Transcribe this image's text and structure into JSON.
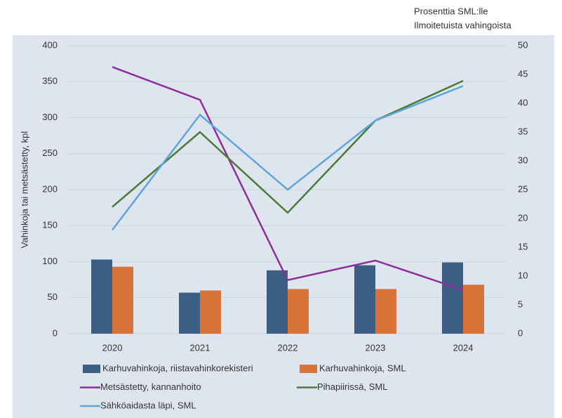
{
  "chart_data": {
    "type": "bar_line",
    "ylabel": "Vahinkoja tai metsästetty, kpl",
    "y2label": [
      "Prosenttia SML:lle",
      "Ilmoitetuista vahingoista"
    ],
    "categories": [
      "2020",
      "2021",
      "2022",
      "2023",
      "2024"
    ],
    "series": [
      {
        "name": "Karhuvahinkoja, riistavahinkorekisteri",
        "type": "bar",
        "color": "#3b5e82",
        "values": [
          103,
          57,
          88,
          95,
          99
        ]
      },
      {
        "name": "Karhuvahinkoja, SML",
        "type": "bar",
        "color": "#d8733a",
        "values": [
          93,
          60,
          62,
          62,
          68
        ]
      },
      {
        "name": "Metsästetty, kannanhoito",
        "type": "line",
        "axis": "y2",
        "color": "#8a2f9c",
        "values": [
          46.3,
          40.6,
          9.3,
          12.7,
          7.6
        ]
      },
      {
        "name": "Pihapiirissä, SML",
        "type": "line",
        "axis": "y2",
        "color": "#4a7a34",
        "values": [
          22,
          35,
          21,
          37,
          43.9
        ]
      },
      {
        "name": "Sähköaidasta läpi, SML",
        "type": "line",
        "axis": "y2",
        "color": "#5ba6da",
        "values": [
          18,
          38,
          25,
          37,
          43
        ]
      }
    ],
    "ylim": [
      0,
      400
    ],
    "yticks": [
      0,
      50,
      100,
      150,
      200,
      250,
      300,
      350,
      400
    ],
    "y2lim": [
      0,
      50
    ],
    "y2ticks": [
      0,
      5,
      10,
      15,
      20,
      25,
      30,
      35,
      40,
      45,
      50
    ],
    "grid": true
  }
}
